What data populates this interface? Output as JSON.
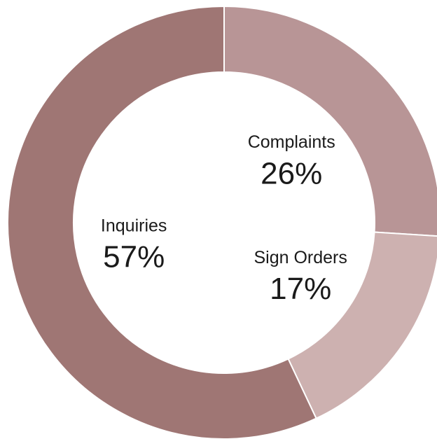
{
  "chart_data": {
    "type": "pie",
    "hole": true,
    "categories": [
      "Complaints",
      "Sign Orders",
      "Inquiries"
    ],
    "values": [
      26,
      17,
      57
    ],
    "value_labels": [
      "26%",
      "17%",
      "57%"
    ],
    "colors": [
      "#b89596",
      "#cdb1b0",
      "#9f7674"
    ]
  }
}
